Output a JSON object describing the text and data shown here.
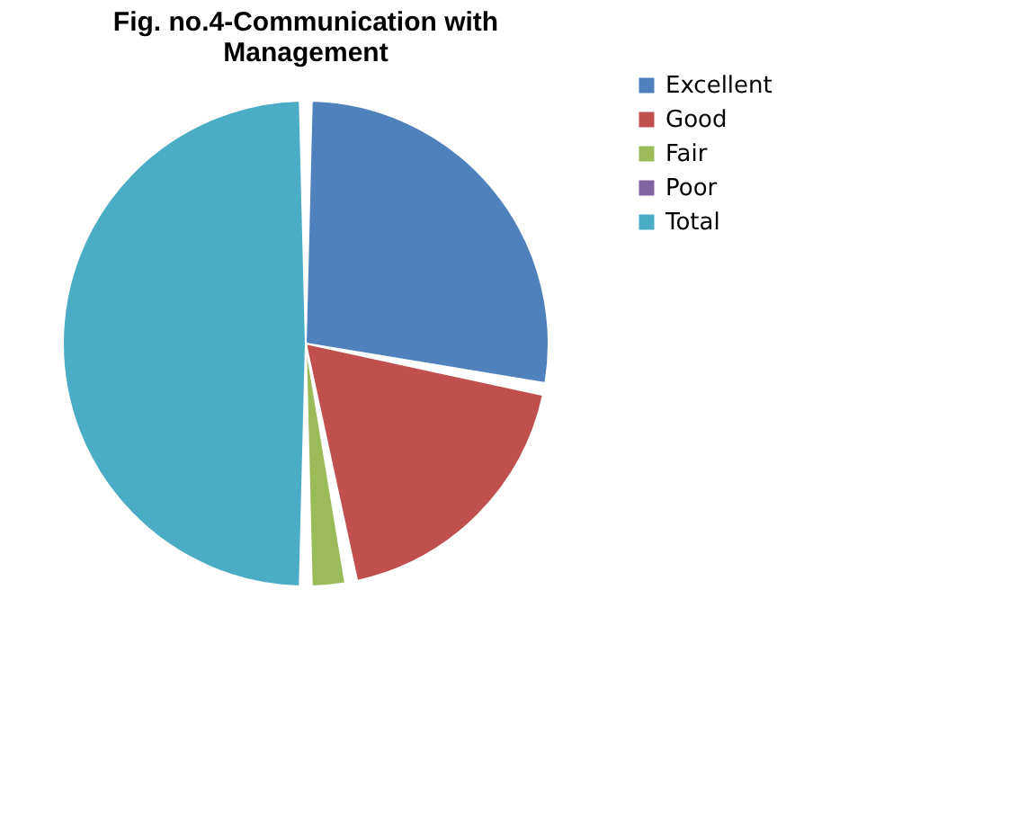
{
  "chart_data": {
    "type": "pie",
    "title": "Fig. no.4-Communication with Management",
    "categories": [
      "Excellent",
      "Good",
      "Fair",
      "Poor",
      "Total"
    ],
    "values": [
      28,
      19,
      3,
      0,
      50
    ],
    "colors": [
      "#4f81bd",
      "#c0504d",
      "#9bbb59",
      "#8064a2",
      "#4bacc6"
    ],
    "legend": "right"
  }
}
